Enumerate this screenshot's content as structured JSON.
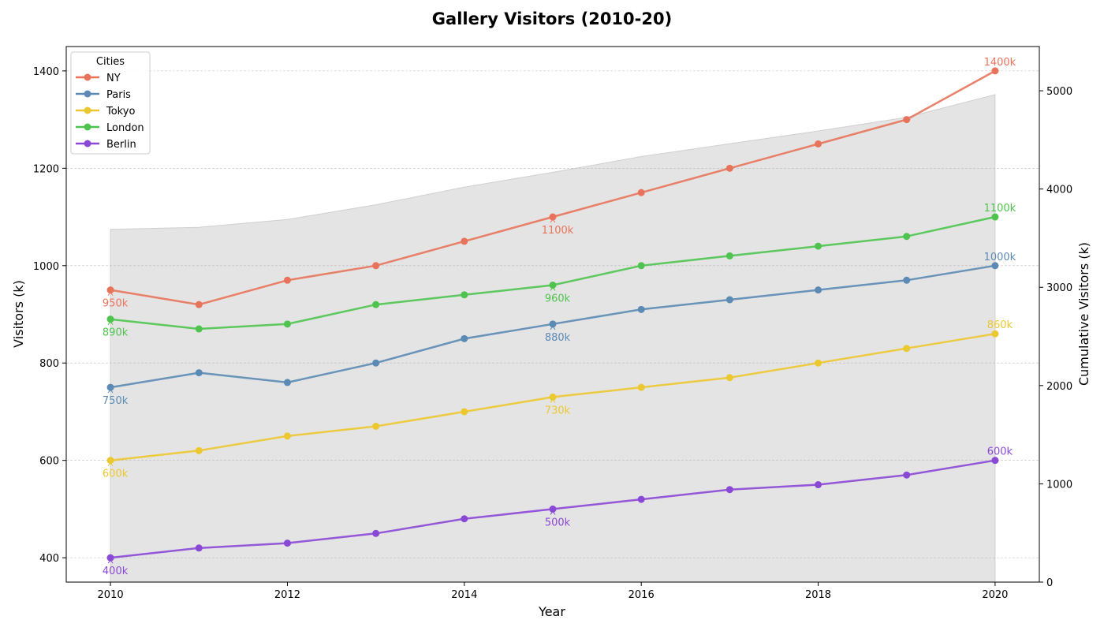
{
  "chart_data": {
    "type": "line",
    "title": "Gallery Visitors (2010-20)",
    "xlabel": "Year",
    "ylabel": "Visitors (k)",
    "y2label": "Cumulative Visitors (k)",
    "x": [
      2010,
      2011,
      2012,
      2013,
      2014,
      2015,
      2016,
      2017,
      2018,
      2019,
      2020
    ],
    "xlim": [
      2009.5,
      2020.5
    ],
    "ylim": [
      350,
      1450
    ],
    "y2lim": [
      0,
      5450
    ],
    "xticks": [
      "2010",
      "2012",
      "2014",
      "2016",
      "2018",
      "2020"
    ],
    "yticks": [
      "400",
      "600",
      "800",
      "1000",
      "1200",
      "1400"
    ],
    "y2ticks": [
      "0",
      "1000",
      "2000",
      "3000",
      "4000",
      "5000"
    ],
    "grid": "horizontal dashed",
    "legend_title": "Cities",
    "legend_position": "top-left",
    "series": [
      {
        "name": "NY",
        "color": "#e8735a",
        "values": [
          950,
          920,
          970,
          1000,
          1050,
          1100,
          1150,
          1200,
          1250,
          1300,
          1400
        ],
        "labels": [
          {
            "i": 0,
            "text": "950k"
          },
          {
            "i": 5,
            "text": "1100k"
          },
          {
            "i": 10,
            "text": "1400k"
          }
        ]
      },
      {
        "name": "Paris",
        "color": "#5b8ab4",
        "values": [
          750,
          780,
          760,
          800,
          850,
          880,
          910,
          930,
          950,
          970,
          1000
        ],
        "labels": [
          {
            "i": 0,
            "text": "750k"
          },
          {
            "i": 5,
            "text": "880k"
          },
          {
            "i": 10,
            "text": "1000k"
          }
        ]
      },
      {
        "name": "Tokyo",
        "color": "#ecc830",
        "values": [
          600,
          620,
          650,
          670,
          700,
          730,
          750,
          770,
          800,
          830,
          860
        ],
        "labels": [
          {
            "i": 0,
            "text": "600k"
          },
          {
            "i": 5,
            "text": "730k"
          },
          {
            "i": 10,
            "text": "860k"
          }
        ]
      },
      {
        "name": "London",
        "color": "#4ec44e",
        "values": [
          890,
          870,
          880,
          920,
          940,
          960,
          1000,
          1020,
          1040,
          1060,
          1100
        ],
        "labels": [
          {
            "i": 0,
            "text": "890k"
          },
          {
            "i": 5,
            "text": "960k"
          },
          {
            "i": 10,
            "text": "1100k"
          }
        ]
      },
      {
        "name": "Berlin",
        "color": "#8a48d6",
        "values": [
          400,
          420,
          430,
          450,
          480,
          500,
          520,
          540,
          550,
          570,
          600
        ],
        "labels": [
          {
            "i": 0,
            "text": "400k"
          },
          {
            "i": 5,
            "text": "500k"
          },
          {
            "i": 10,
            "text": "600k"
          }
        ]
      }
    ],
    "cumulative_area": {
      "axis": "right",
      "color": "#cccccc",
      "values": [
        3590,
        3610,
        3690,
        3840,
        4020,
        4170,
        4330,
        4460,
        4590,
        4730,
        4960
      ]
    }
  }
}
